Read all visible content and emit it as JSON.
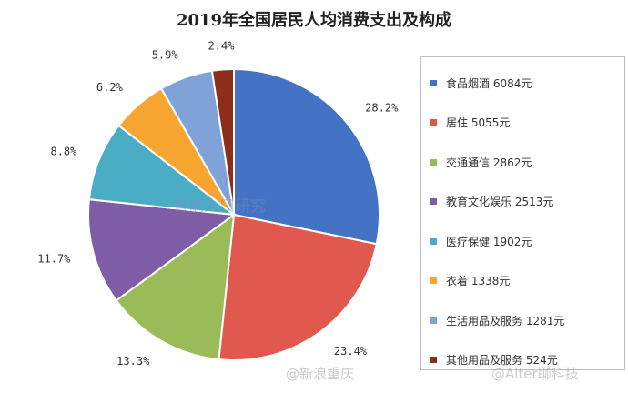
{
  "chart_data": {
    "type": "pie",
    "title": "2019年全国居民人均消费支出及构成",
    "slices": [
      {
        "label": "食品烟酒",
        "amount": "6084元",
        "value": 28.2,
        "pct_label": "28.2%",
        "color": "#4472C4"
      },
      {
        "label": "居住",
        "amount": "5055元",
        "value": 23.4,
        "pct_label": "23.4%",
        "color": "#E0584E"
      },
      {
        "label": "交通通信",
        "amount": "2862元",
        "value": 13.3,
        "pct_label": "13.3%",
        "color": "#9BBB59"
      },
      {
        "label": "教育文化娱乐",
        "amount": "2513元",
        "value": 11.7,
        "pct_label": "11.7%",
        "color": "#7E5DA6"
      },
      {
        "label": "医疗保健",
        "amount": "1902元",
        "value": 8.8,
        "pct_label": "8.8%",
        "color": "#4BACC6"
      },
      {
        "label": "衣着",
        "amount": "1338元",
        "value": 6.2,
        "pct_label": "6.2%",
        "color": "#F7A531"
      },
      {
        "label": "生活用品及服务",
        "amount": "1281元",
        "value": 5.9,
        "pct_label": "5.9%",
        "color": "#7FA3D9"
      },
      {
        "label": "其他用品及服务",
        "amount": "524元",
        "value": 2.4,
        "pct_label": "2.4%",
        "color": "#8B2F1B"
      }
    ],
    "legend_position": "right"
  },
  "watermarks": {
    "center": "育娲人口研究",
    "bottom_left": "@新浪重庆",
    "bottom_right": "@Alter聊科技"
  }
}
